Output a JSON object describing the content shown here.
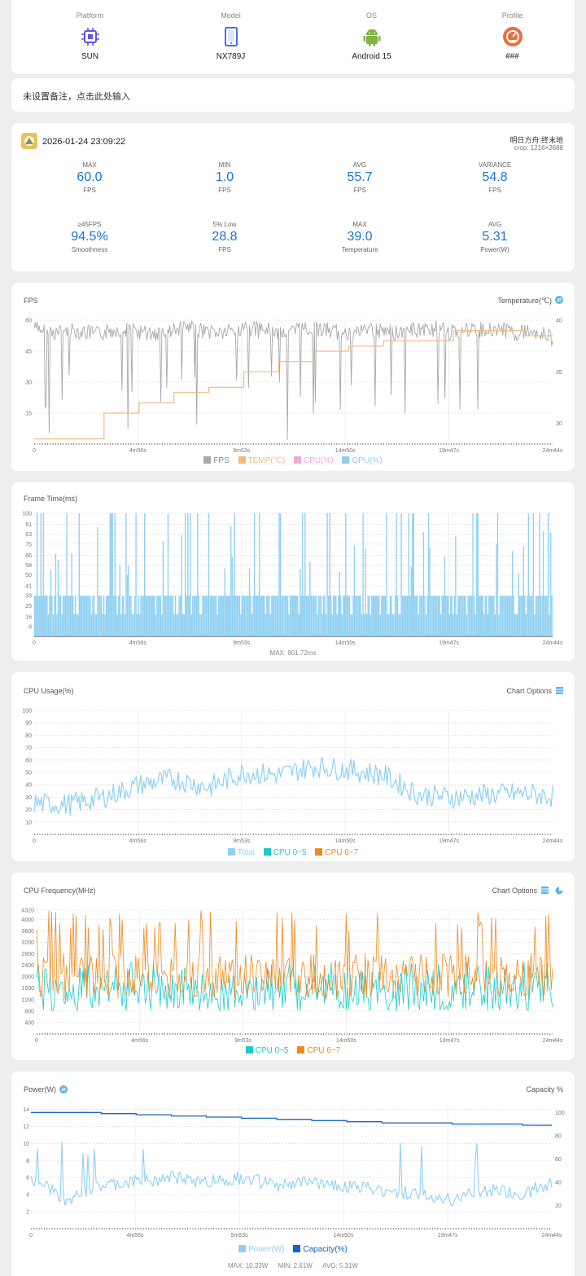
{
  "device": {
    "platform_label": "Platform",
    "platform": "SUN",
    "model_label": "Model",
    "model": "NX789J",
    "os_label": "OS",
    "os": "Android 15",
    "profile_label": "Profile",
    "profile": "###"
  },
  "note": "未设置备注，点击此处输入",
  "session": {
    "datetime": "2026-01-24 23:09:22",
    "app": "明日方舟:终末地",
    "resolution": "crop: 1216×2688",
    "stats": [
      {
        "key": "MAX",
        "value": "60.0",
        "unit": "FPS"
      },
      {
        "key": "MIN",
        "value": "1.0",
        "unit": "FPS"
      },
      {
        "key": "AVG",
        "value": "55.7",
        "unit": "FPS"
      },
      {
        "key": "VARIANCE",
        "value": "54.8",
        "unit": "FPS"
      },
      {
        "key": "≥45FPS",
        "value": "94.5%",
        "unit": "Smoothness"
      },
      {
        "key": "5% Low",
        "value": "28.8",
        "unit": "FPS"
      },
      {
        "key": "MAX",
        "value": "39.0",
        "unit": "Temperature"
      },
      {
        "key": "AVG",
        "value": "5.31",
        "unit": "Power(W)"
      }
    ]
  },
  "x_ticks": [
    "0",
    "4m56s",
    "9m53s",
    "14m50s",
    "19m47s",
    "24m44s"
  ],
  "charts": {
    "fps": {
      "title": "FPS",
      "right_title": "Temperature(℃)",
      "y_ticks": [
        "60",
        "45",
        "30",
        "15"
      ],
      "y2_ticks": [
        "40",
        "35",
        "30"
      ],
      "legend": [
        "FPS",
        "TEMP(℃)",
        "CPU(%)",
        "GPU(%)"
      ]
    },
    "frametime": {
      "title": "Frame Time(ms)",
      "y_ticks": [
        "100",
        "91",
        "83",
        "75",
        "66",
        "58",
        "50",
        "41",
        "33",
        "25",
        "16",
        "8"
      ],
      "max_label": "MAX: 801.72ms"
    },
    "cpu_usage": {
      "title": "CPU Usage(%)",
      "options": "Chart Options",
      "y_ticks": [
        "100",
        "90",
        "80",
        "70",
        "60",
        "50",
        "40",
        "30",
        "20",
        "10"
      ],
      "legend": [
        "Total",
        "CPU 0~5",
        "CPU 6~7"
      ]
    },
    "cpu_freq": {
      "title": "CPU Frequency(MHz)",
      "options": "Chart Options",
      "y_ticks": [
        "4320",
        "4000",
        "3600",
        "3200",
        "2800",
        "2400",
        "2000",
        "1600",
        "1200",
        "800",
        "400"
      ],
      "legend": [
        "CPU 0~5",
        "CPU 6~7"
      ]
    },
    "power": {
      "title": "Power(W)",
      "right_title": "Capacity %",
      "y_ticks": [
        "14",
        "12",
        "10",
        "8",
        "6",
        "4",
        "2"
      ],
      "y2_ticks": [
        "100",
        "80",
        "60",
        "40",
        "20"
      ],
      "legend": [
        "Power(W)",
        "Capacity(%)"
      ],
      "max": "MAX: 10.33W",
      "min": "MIN: 2.61W",
      "avg": "AVG: 5.31W"
    }
  },
  "colors": {
    "fps": "#a8a8a8",
    "temp": "#f5b97a",
    "cpu": "#f4a7d8",
    "gpu": "#8fd0f2",
    "blue": "#1976d2",
    "cyan": "#1ec9c9",
    "orange": "#f08a1e",
    "cap": "#1565c0"
  },
  "chart_data": [
    {
      "type": "line",
      "title": "FPS",
      "duration_s": 1484,
      "series": [
        {
          "name": "FPS",
          "x_s": [
            0,
            60,
            120,
            180,
            240,
            300,
            360,
            420,
            480,
            540,
            600,
            660,
            720,
            780,
            840,
            900,
            960,
            1020,
            1080,
            1140,
            1200,
            1260,
            1320,
            1380,
            1440,
            1484
          ],
          "values": [
            60,
            58,
            59,
            57,
            60,
            58,
            57,
            60,
            59,
            58,
            60,
            59,
            58,
            60,
            59,
            57,
            60,
            58,
            59,
            60,
            58,
            59,
            60,
            58,
            59,
            55
          ]
        },
        {
          "name": "TEMP(℃)",
          "x_s": [
            0,
            100,
            200,
            300,
            400,
            500,
            600,
            700,
            800,
            900,
            1000,
            1100,
            1200,
            1300,
            1400,
            1484
          ],
          "values": [
            28.5,
            28.5,
            31,
            32,
            33,
            33.5,
            35,
            36,
            37,
            37.5,
            38,
            38,
            39,
            39,
            38.5,
            38.5
          ]
        }
      ],
      "y_ticks": [
        15,
        30,
        45,
        60
      ],
      "y2_range": [
        28,
        40
      ]
    },
    {
      "type": "bar",
      "title": "Frame Time(ms)",
      "y_range": [
        0,
        100
      ],
      "max": 801.72,
      "typical_ms": [
        16,
        33
      ]
    },
    {
      "type": "line",
      "title": "CPU Usage(%)",
      "x_s": [
        0,
        100,
        200,
        300,
        400,
        500,
        600,
        700,
        800,
        900,
        1000,
        1100,
        1200,
        1300,
        1400,
        1484
      ],
      "series": [
        {
          "name": "Total",
          "values": [
            25,
            24,
            30,
            40,
            45,
            38,
            50,
            48,
            55,
            52,
            48,
            32,
            30,
            32,
            33,
            31
          ]
        }
      ],
      "y_range": [
        0,
        100
      ]
    },
    {
      "type": "line",
      "title": "CPU Frequency(MHz)",
      "y_range": [
        0,
        4320
      ],
      "series": [
        {
          "name": "CPU 0~5",
          "values_range": [
            800,
            2400
          ]
        },
        {
          "name": "CPU 6~7",
          "values_range": [
            1200,
            4320
          ]
        }
      ]
    },
    {
      "type": "line",
      "title": "Power(W)",
      "x_s": [
        0,
        100,
        200,
        300,
        400,
        500,
        600,
        700,
        800,
        900,
        1000,
        1100,
        1200,
        1300,
        1400,
        1484
      ],
      "series": [
        {
          "name": "Power(W)",
          "values": [
            6,
            3.5,
            5,
            5.5,
            6,
            5.5,
            6,
            5,
            5.5,
            5,
            4.5,
            4,
            3.5,
            4.5,
            4,
            5.5
          ]
        },
        {
          "name": "Capacity(%)",
          "values": [
            100,
            100,
            99,
            98,
            97,
            96,
            95,
            94,
            93,
            92,
            91,
            91,
            90,
            90,
            89,
            89
          ]
        }
      ],
      "max": 10.33,
      "min": 2.61,
      "avg": 5.31
    }
  ]
}
